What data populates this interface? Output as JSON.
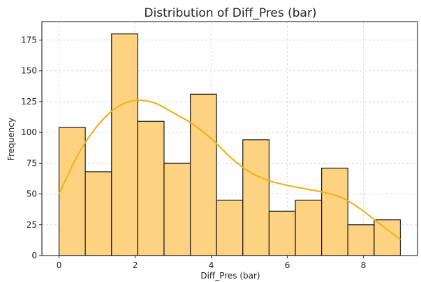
{
  "chart_data": {
    "type": "bar",
    "title": "Distribution of Diff_Pres (bar)",
    "xlabel": "Diff_Pres (bar)",
    "ylabel": "Frequency",
    "bins": [
      {
        "x0": 0.0,
        "x1": 0.69,
        "count": 104
      },
      {
        "x0": 0.69,
        "x1": 1.38,
        "count": 68
      },
      {
        "x0": 1.38,
        "x1": 2.07,
        "count": 180
      },
      {
        "x0": 2.07,
        "x1": 2.76,
        "count": 109
      },
      {
        "x0": 2.76,
        "x1": 3.45,
        "count": 75
      },
      {
        "x0": 3.45,
        "x1": 4.14,
        "count": 131
      },
      {
        "x0": 4.14,
        "x1": 4.83,
        "count": 45
      },
      {
        "x0": 4.83,
        "x1": 5.52,
        "count": 94
      },
      {
        "x0": 5.52,
        "x1": 6.21,
        "count": 36
      },
      {
        "x0": 6.21,
        "x1": 6.9,
        "count": 45
      },
      {
        "x0": 6.9,
        "x1": 7.59,
        "count": 71
      },
      {
        "x0": 7.59,
        "x1": 8.28,
        "count": 25
      },
      {
        "x0": 8.28,
        "x1": 8.97,
        "count": 29
      }
    ],
    "kde": {
      "x": [
        0.0,
        0.5,
        1.0,
        1.5,
        2.0,
        2.5,
        3.0,
        3.5,
        4.0,
        4.5,
        5.0,
        5.5,
        6.0,
        6.5,
        7.0,
        7.5,
        8.0,
        8.5,
        8.97
      ],
      "y": [
        50,
        82,
        105,
        120,
        126,
        124,
        116,
        107,
        95,
        80,
        68,
        61,
        57,
        54,
        51,
        46,
        36,
        24,
        13
      ]
    },
    "xlim": [
      -0.45,
      9.42
    ],
    "ylim": [
      0,
      190
    ],
    "xticks": [
      0,
      2,
      4,
      6,
      8
    ],
    "yticks": [
      0,
      25,
      50,
      75,
      100,
      125,
      150,
      175
    ],
    "grid": true,
    "colors": {
      "bar_fill": "#fdd382",
      "bar_edge": "#1a1a1a",
      "kde_line": "#efb31f"
    }
  }
}
